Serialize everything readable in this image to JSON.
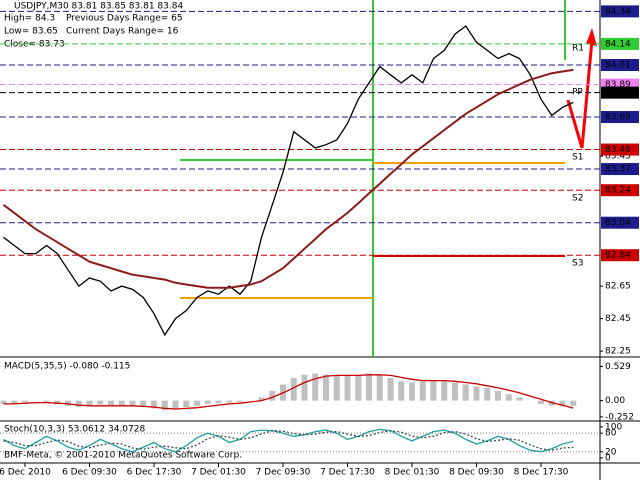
{
  "chart_data": [
    {
      "type": "line",
      "title": "USDJPY,M30  83.81 83.85 83.81 83.84",
      "info": [
        "High= 84.3",
        "Low= 83.65",
        "Close= 83.73"
      ],
      "info2": [
        "Previous Days Range= 65",
        "Current Days Range= 16"
      ],
      "annotations": [
        "R1",
        "PP",
        "S1",
        "S2",
        "S3"
      ],
      "categories": [
        null,
        null,
        "6 Dec 2010",
        null,
        null,
        null,
        null,
        null,
        "6 Dec 09:30",
        null,
        null,
        null,
        null,
        null,
        "6 Dec 17:30",
        null,
        null,
        null,
        null,
        null,
        "7 Dec 01:30",
        null,
        null,
        null,
        null,
        null,
        "7 Dec 09:30",
        null,
        null,
        null,
        null,
        null,
        "7 Dec 17:30",
        null,
        null,
        null,
        null,
        null,
        "8 Dec 01:30",
        null,
        null,
        null,
        null,
        null,
        "8 Dec 09:30",
        null,
        null,
        null,
        null,
        null,
        "8 Dec 17:30",
        null,
        null,
        null
      ],
      "series": [
        {
          "color": "#000000",
          "values": [
            82.95,
            82.9,
            82.85,
            82.85,
            82.9,
            82.85,
            82.75,
            82.65,
            82.7,
            82.68,
            82.62,
            82.65,
            82.63,
            82.58,
            82.48,
            82.35,
            82.45,
            82.5,
            82.58,
            82.62,
            82.6,
            82.65,
            82.6,
            82.68,
            82.95,
            83.15,
            83.35,
            83.6,
            83.55,
            83.5,
            83.52,
            83.55,
            83.65,
            83.8,
            83.9,
            84.0,
            83.95,
            83.9,
            83.95,
            83.9,
            84.05,
            84.1,
            84.2,
            84.25,
            84.15,
            84.1,
            84.05,
            84.08,
            84.05,
            83.95,
            83.8,
            83.7,
            83.75,
            83.78
          ]
        },
        {
          "color": "#8b1a1a",
          "values": [
            83.15,
            83.1,
            83.05,
            83.0,
            82.96,
            82.92,
            82.88,
            82.84,
            82.8,
            82.78,
            82.76,
            82.74,
            82.72,
            82.71,
            82.7,
            82.69,
            82.67,
            82.66,
            82.65,
            82.64,
            82.64,
            82.64,
            82.65,
            82.66,
            82.68,
            82.72,
            82.76,
            82.82,
            82.88,
            82.94,
            83.0,
            83.05,
            83.1,
            83.16,
            83.22,
            83.28,
            83.34,
            83.4,
            83.46,
            83.51,
            83.56,
            83.61,
            83.66,
            83.71,
            83.75,
            83.79,
            83.83,
            83.86,
            83.89,
            83.92,
            83.94,
            83.96,
            83.97,
            83.98
          ]
        }
      ],
      "ylim": [
        82.22,
        84.41
      ],
      "yticks": [
        83.45,
        82.65,
        82.45,
        82.25
      ],
      "levels": [
        {
          "value": 84.34,
          "color": "#1c1c8c"
        },
        {
          "value": 84.14,
          "color": "#32cd32"
        },
        {
          "value": 84.01,
          "color": "#1c1c8c"
        },
        {
          "value": 83.89,
          "color": "#ee82ee"
        },
        {
          "value": 83.84,
          "color": "#000000"
        },
        {
          "value": 83.69,
          "color": "#1c1c8c"
        },
        {
          "value": 83.49,
          "color": "#cc0000"
        },
        {
          "value": 83.37,
          "color": "#1c1c8c"
        },
        {
          "value": 83.24,
          "color": "#cc0000"
        },
        {
          "value": 83.04,
          "color": "#1c1c8c"
        },
        {
          "value": 82.84,
          "color": "#cc0000"
        }
      ]
    },
    {
      "type": "bar",
      "title": "MACD(5,35,5) -0.080 -0.115",
      "series": [
        {
          "type": "bar",
          "color": "#c0c0c0",
          "values": [
            -0.05,
            -0.04,
            -0.02,
            0.0,
            -0.03,
            -0.06,
            -0.08,
            -0.1,
            -0.08,
            -0.06,
            -0.07,
            -0.08,
            -0.09,
            -0.1,
            -0.12,
            -0.15,
            -0.12,
            -0.1,
            -0.08,
            -0.05,
            -0.04,
            -0.03,
            -0.02,
            0.0,
            0.05,
            0.15,
            0.25,
            0.35,
            0.4,
            0.42,
            0.4,
            0.38,
            0.38,
            0.4,
            0.42,
            0.4,
            0.35,
            0.3,
            0.28,
            0.3,
            0.32,
            0.3,
            0.28,
            0.25,
            0.22,
            0.2,
            0.15,
            0.1,
            0.05,
            0.0,
            -0.05,
            -0.08,
            -0.09,
            -0.08
          ]
        },
        {
          "type": "line",
          "color": "#cc0000",
          "values": [
            -0.05,
            -0.05,
            -0.04,
            -0.03,
            -0.03,
            -0.04,
            -0.05,
            -0.07,
            -0.08,
            -0.08,
            -0.08,
            -0.08,
            -0.08,
            -0.09,
            -0.1,
            -0.12,
            -0.13,
            -0.12,
            -0.11,
            -0.09,
            -0.07,
            -0.05,
            -0.04,
            -0.02,
            0.0,
            0.05,
            0.12,
            0.2,
            0.28,
            0.34,
            0.38,
            0.39,
            0.39,
            0.39,
            0.4,
            0.4,
            0.39,
            0.36,
            0.33,
            0.31,
            0.31,
            0.31,
            0.3,
            0.28,
            0.26,
            0.23,
            0.2,
            0.16,
            0.12,
            0.07,
            0.02,
            -0.03,
            -0.07,
            -0.115
          ]
        }
      ],
      "ylim": [
        -0.3,
        0.66
      ],
      "yticks": [
        0.529,
        {
          "value": 0,
          "label": "0.00"
        },
        -0.252
      ]
    },
    {
      "type": "line",
      "title": "Stoch(10,3,3) 53.0612 34.0728",
      "footer": "BMF-Meta, © 2001-2010 MetaQuotes Software Corp.",
      "series": [
        {
          "type": "line",
          "color": "#20a0a0",
          "values": [
            60,
            40,
            30,
            50,
            70,
            55,
            35,
            25,
            40,
            60,
            45,
            30,
            20,
            35,
            50,
            30,
            20,
            40,
            65,
            80,
            70,
            50,
            60,
            85,
            90,
            88,
            80,
            70,
            75,
            85,
            90,
            80,
            60,
            70,
            85,
            92,
            88,
            70,
            55,
            70,
            85,
            90,
            80,
            60,
            45,
            55,
            70,
            60,
            40,
            25,
            20,
            30,
            45,
            53.0612
          ]
        },
        {
          "type": "dotted",
          "color": "#2f4f4f",
          "values": [
            55,
            50,
            40,
            40,
            50,
            58,
            53,
            38,
            33,
            42,
            48,
            45,
            32,
            28,
            35,
            38,
            33,
            30,
            42,
            62,
            72,
            67,
            60,
            65,
            78,
            88,
            86,
            79,
            75,
            77,
            83,
            85,
            77,
            70,
            72,
            82,
            88,
            83,
            71,
            65,
            70,
            82,
            85,
            77,
            62,
            53,
            57,
            62,
            57,
            42,
            30,
            25,
            32,
            34.0728
          ]
        }
      ],
      "ylim": [
        -13,
        116
      ],
      "yticks": [
        100,
        80,
        20,
        0
      ],
      "levels": [
        80,
        20
      ]
    }
  ]
}
